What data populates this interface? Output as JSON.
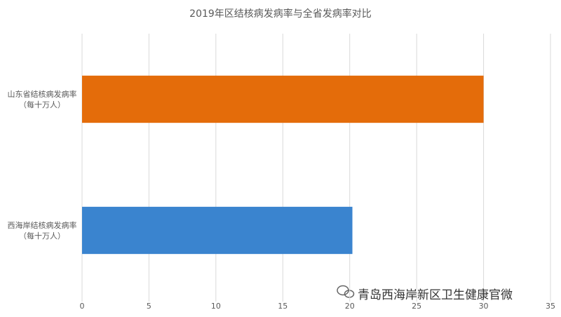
{
  "chart_data": {
    "type": "barh",
    "title": "2019年区结核病发病率与全省发病率对比",
    "categories": [
      "山东省结核病发病率\n（每十万人）",
      "西海岸结核病发病率\n（每十万人）"
    ],
    "values": [
      30.0,
      20.2
    ],
    "colors": [
      "#e46c0a",
      "#3a84cf"
    ],
    "xlim": [
      0,
      35
    ],
    "xticks": [
      0,
      5,
      10,
      15,
      20,
      25,
      30,
      35
    ],
    "grid": true
  },
  "watermark": "青岛西海岸新区卫生健康官微"
}
